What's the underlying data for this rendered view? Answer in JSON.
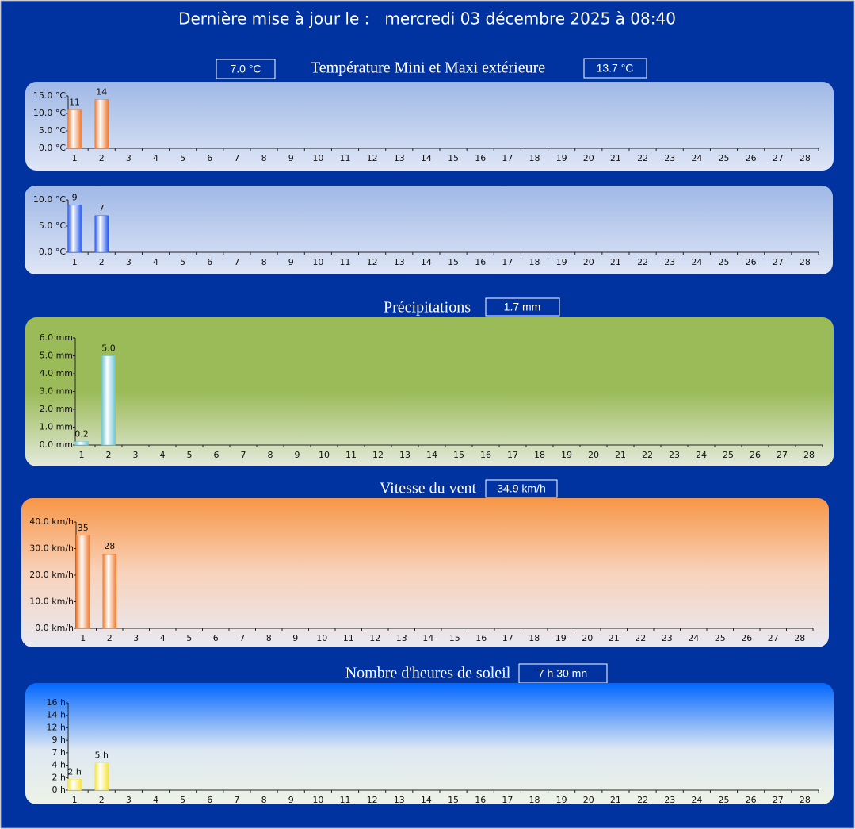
{
  "header": {
    "title": "Dernière mise à jour le :   mercredi 03 décembre 2025 à 08:40"
  },
  "sections": [
    {
      "title": "Température Mini et Maxi extérieure",
      "badges": [
        "7.0 °C",
        "13.7 °C"
      ]
    },
    {
      "title": "Précipitations",
      "badges": [
        "1.7 mm"
      ]
    },
    {
      "title": "Vitesse du vent",
      "badges": [
        "34.9 km/h"
      ]
    },
    {
      "title": "Nombre d'heures de soleil",
      "badges": [
        "7 h 30 mn"
      ]
    }
  ],
  "chart_data": [
    {
      "type": "bar",
      "color": "#f07a30",
      "categories": [
        "1",
        "2",
        "3",
        "4",
        "5",
        "6",
        "7",
        "8",
        "9",
        "10",
        "11",
        "12",
        "13",
        "14",
        "15",
        "16",
        "17",
        "18",
        "19",
        "20",
        "21",
        "22",
        "23",
        "24",
        "25",
        "26",
        "27",
        "28"
      ],
      "values": [
        11,
        14,
        null,
        null,
        null,
        null,
        null,
        null,
        null,
        null,
        null,
        null,
        null,
        null,
        null,
        null,
        null,
        null,
        null,
        null,
        null,
        null,
        null,
        null,
        null,
        null,
        null,
        null
      ],
      "ylim": [
        0,
        15
      ],
      "yticks": [
        {
          "value": 0,
          "label": "0.0 °C"
        },
        {
          "value": 5,
          "label": "5.0 °C"
        },
        {
          "value": 10,
          "label": "10.0 °C"
        },
        {
          "value": 15,
          "label": "15.0 °C"
        }
      ]
    },
    {
      "type": "bar",
      "color": "#2a5cf0",
      "categories": [
        "1",
        "2",
        "3",
        "4",
        "5",
        "6",
        "7",
        "8",
        "9",
        "10",
        "11",
        "12",
        "13",
        "14",
        "15",
        "16",
        "17",
        "18",
        "19",
        "20",
        "21",
        "22",
        "23",
        "24",
        "25",
        "26",
        "27",
        "28"
      ],
      "values": [
        9,
        7,
        null,
        null,
        null,
        null,
        null,
        null,
        null,
        null,
        null,
        null,
        null,
        null,
        null,
        null,
        null,
        null,
        null,
        null,
        null,
        null,
        null,
        null,
        null,
        null,
        null,
        null
      ],
      "ylim": [
        0,
        10
      ],
      "yticks": [
        {
          "value": 0,
          "label": "0.0 °C"
        },
        {
          "value": 5,
          "label": "5.0 °C"
        },
        {
          "value": 10,
          "label": "10.0 °C"
        }
      ]
    },
    {
      "type": "bar",
      "color": "#6fc4d4",
      "categories": [
        "1",
        "2",
        "3",
        "4",
        "5",
        "6",
        "7",
        "8",
        "9",
        "10",
        "11",
        "12",
        "13",
        "14",
        "15",
        "16",
        "17",
        "18",
        "19",
        "20",
        "21",
        "22",
        "23",
        "24",
        "25",
        "26",
        "27",
        "28"
      ],
      "values": [
        0.2,
        5,
        null,
        null,
        null,
        null,
        null,
        null,
        null,
        null,
        null,
        null,
        null,
        null,
        null,
        null,
        null,
        null,
        null,
        null,
        null,
        null,
        null,
        null,
        null,
        null,
        null,
        null
      ],
      "value_labels": [
        "0.2",
        "5.0",
        null,
        null,
        null,
        null,
        null,
        null,
        null,
        null,
        null,
        null,
        null,
        null,
        null,
        null,
        null,
        null,
        null,
        null,
        null,
        null,
        null,
        null,
        null,
        null,
        null,
        null
      ],
      "ylim": [
        0,
        6
      ],
      "yticks": [
        {
          "value": 0,
          "label": "0.0 mm"
        },
        {
          "value": 1,
          "label": "1.0 mm"
        },
        {
          "value": 2,
          "label": "2.0 mm"
        },
        {
          "value": 3,
          "label": "3.0 mm"
        },
        {
          "value": 4,
          "label": "4.0 mm"
        },
        {
          "value": 5,
          "label": "5.0 mm"
        },
        {
          "value": 6,
          "label": "6.0 mm"
        }
      ]
    },
    {
      "type": "bar",
      "color": "#f07a30",
      "categories": [
        "1",
        "2",
        "3",
        "4",
        "5",
        "6",
        "7",
        "8",
        "9",
        "10",
        "11",
        "12",
        "13",
        "14",
        "15",
        "16",
        "17",
        "18",
        "19",
        "20",
        "21",
        "22",
        "23",
        "24",
        "25",
        "26",
        "27",
        "28"
      ],
      "values": [
        35,
        28,
        null,
        null,
        null,
        null,
        null,
        null,
        null,
        null,
        null,
        null,
        null,
        null,
        null,
        null,
        null,
        null,
        null,
        null,
        null,
        null,
        null,
        null,
        null,
        null,
        null,
        null
      ],
      "ylim": [
        0,
        40
      ],
      "yticks": [
        {
          "value": 0,
          "label": "0.0 km/h"
        },
        {
          "value": 10,
          "label": "10.0 km/h"
        },
        {
          "value": 20,
          "label": "20.0 km/h"
        },
        {
          "value": 30,
          "label": "30.0 km/h"
        },
        {
          "value": 40,
          "label": "40.0 km/h"
        }
      ]
    },
    {
      "type": "bar",
      "color": "#f5e640",
      "categories": [
        "1",
        "2",
        "3",
        "4",
        "5",
        "6",
        "7",
        "8",
        "9",
        "10",
        "11",
        "12",
        "13",
        "14",
        "15",
        "16",
        "17",
        "18",
        "19",
        "20",
        "21",
        "22",
        "23",
        "24",
        "25",
        "26",
        "27",
        "28"
      ],
      "values": [
        2,
        5,
        null,
        null,
        null,
        null,
        null,
        null,
        null,
        null,
        null,
        null,
        null,
        null,
        null,
        null,
        null,
        null,
        null,
        null,
        null,
        null,
        null,
        null,
        null,
        null,
        null,
        null
      ],
      "value_labels": [
        "2 h",
        "5 h",
        null,
        null,
        null,
        null,
        null,
        null,
        null,
        null,
        null,
        null,
        null,
        null,
        null,
        null,
        null,
        null,
        null,
        null,
        null,
        null,
        null,
        null,
        null,
        null,
        null,
        null
      ],
      "ylim": [
        0,
        16
      ],
      "yticks": [
        {
          "value": 0,
          "label": "0 h"
        },
        {
          "value": 2.29,
          "label": "2 h"
        },
        {
          "value": 4.57,
          "label": "4 h"
        },
        {
          "value": 6.86,
          "label": "7 h"
        },
        {
          "value": 9.14,
          "label": "9 h"
        },
        {
          "value": 11.43,
          "label": "12 h"
        },
        {
          "value": 13.71,
          "label": "14 h"
        },
        {
          "value": 16,
          "label": "16 h"
        }
      ]
    }
  ]
}
